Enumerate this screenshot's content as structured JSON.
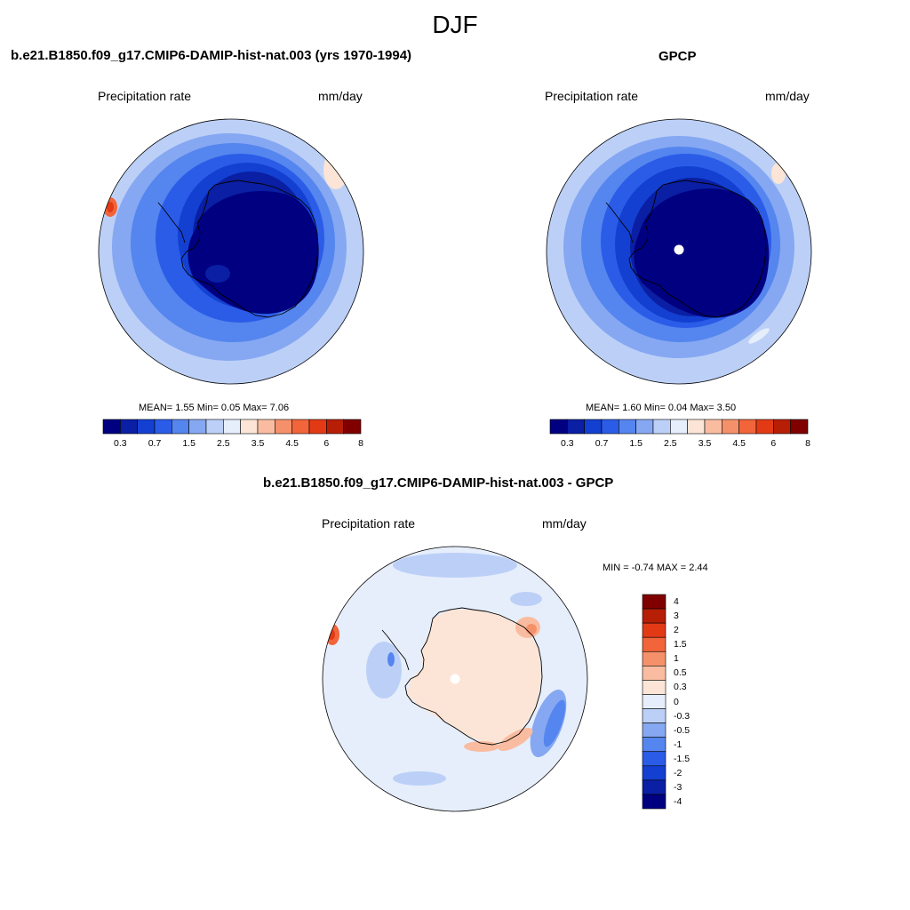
{
  "figure": {
    "title": "DJF"
  },
  "panels": {
    "model": {
      "title": "b.e21.B1850.f09_g17.CMIP6-DAMIP-hist-nat.003 (yrs 1970-1994)",
      "left_label": "Precipitation rate",
      "right_label": "mm/day",
      "stats": "MEAN=   1.55  Min=   0.05  Max=   7.06"
    },
    "obs": {
      "title": "GPCP",
      "left_label": "Precipitation rate",
      "right_label": "mm/day",
      "stats": "MEAN=   1.60  Min=   0.04  Max=   3.50"
    },
    "diff": {
      "title": "b.e21.B1850.f09_g17.CMIP6-DAMIP-hist-nat.003 - GPCP",
      "left_label": "Precipitation rate",
      "right_label": "mm/day",
      "minmax": "MIN =  -0.74 MAX =   2.44"
    }
  },
  "colorbar": {
    "colors": [
      "#000080",
      "#0A1FA3",
      "#1340D1",
      "#2B5CE8",
      "#5585EE",
      "#86A8F2",
      "#BCD0F7",
      "#E6EEFC",
      "#FCE5D6",
      "#F9BCA0",
      "#F5916A",
      "#F2643A",
      "#E33A16",
      "#B71E06",
      "#800000"
    ],
    "labels": [
      "0.3",
      "0.7",
      "1.5",
      "2.5",
      "3.5",
      "4.5",
      "6",
      "8"
    ]
  },
  "diff_colorbar": {
    "colors": [
      "#800000",
      "#B71E06",
      "#E33A16",
      "#F2643A",
      "#F5916A",
      "#F9BCA0",
      "#FCE5D6",
      "#E6EEFC",
      "#BCD0F7",
      "#86A8F2",
      "#5585EE",
      "#2B5CE8",
      "#1340D1",
      "#0A1FA3",
      "#000080"
    ],
    "labels": [
      "4",
      "3",
      "2",
      "1.5",
      "1",
      "0.5",
      "0.3",
      "0",
      "-0.3",
      "-0.5",
      "-1",
      "-1.5",
      "-2",
      "-3",
      "-4"
    ]
  }
}
